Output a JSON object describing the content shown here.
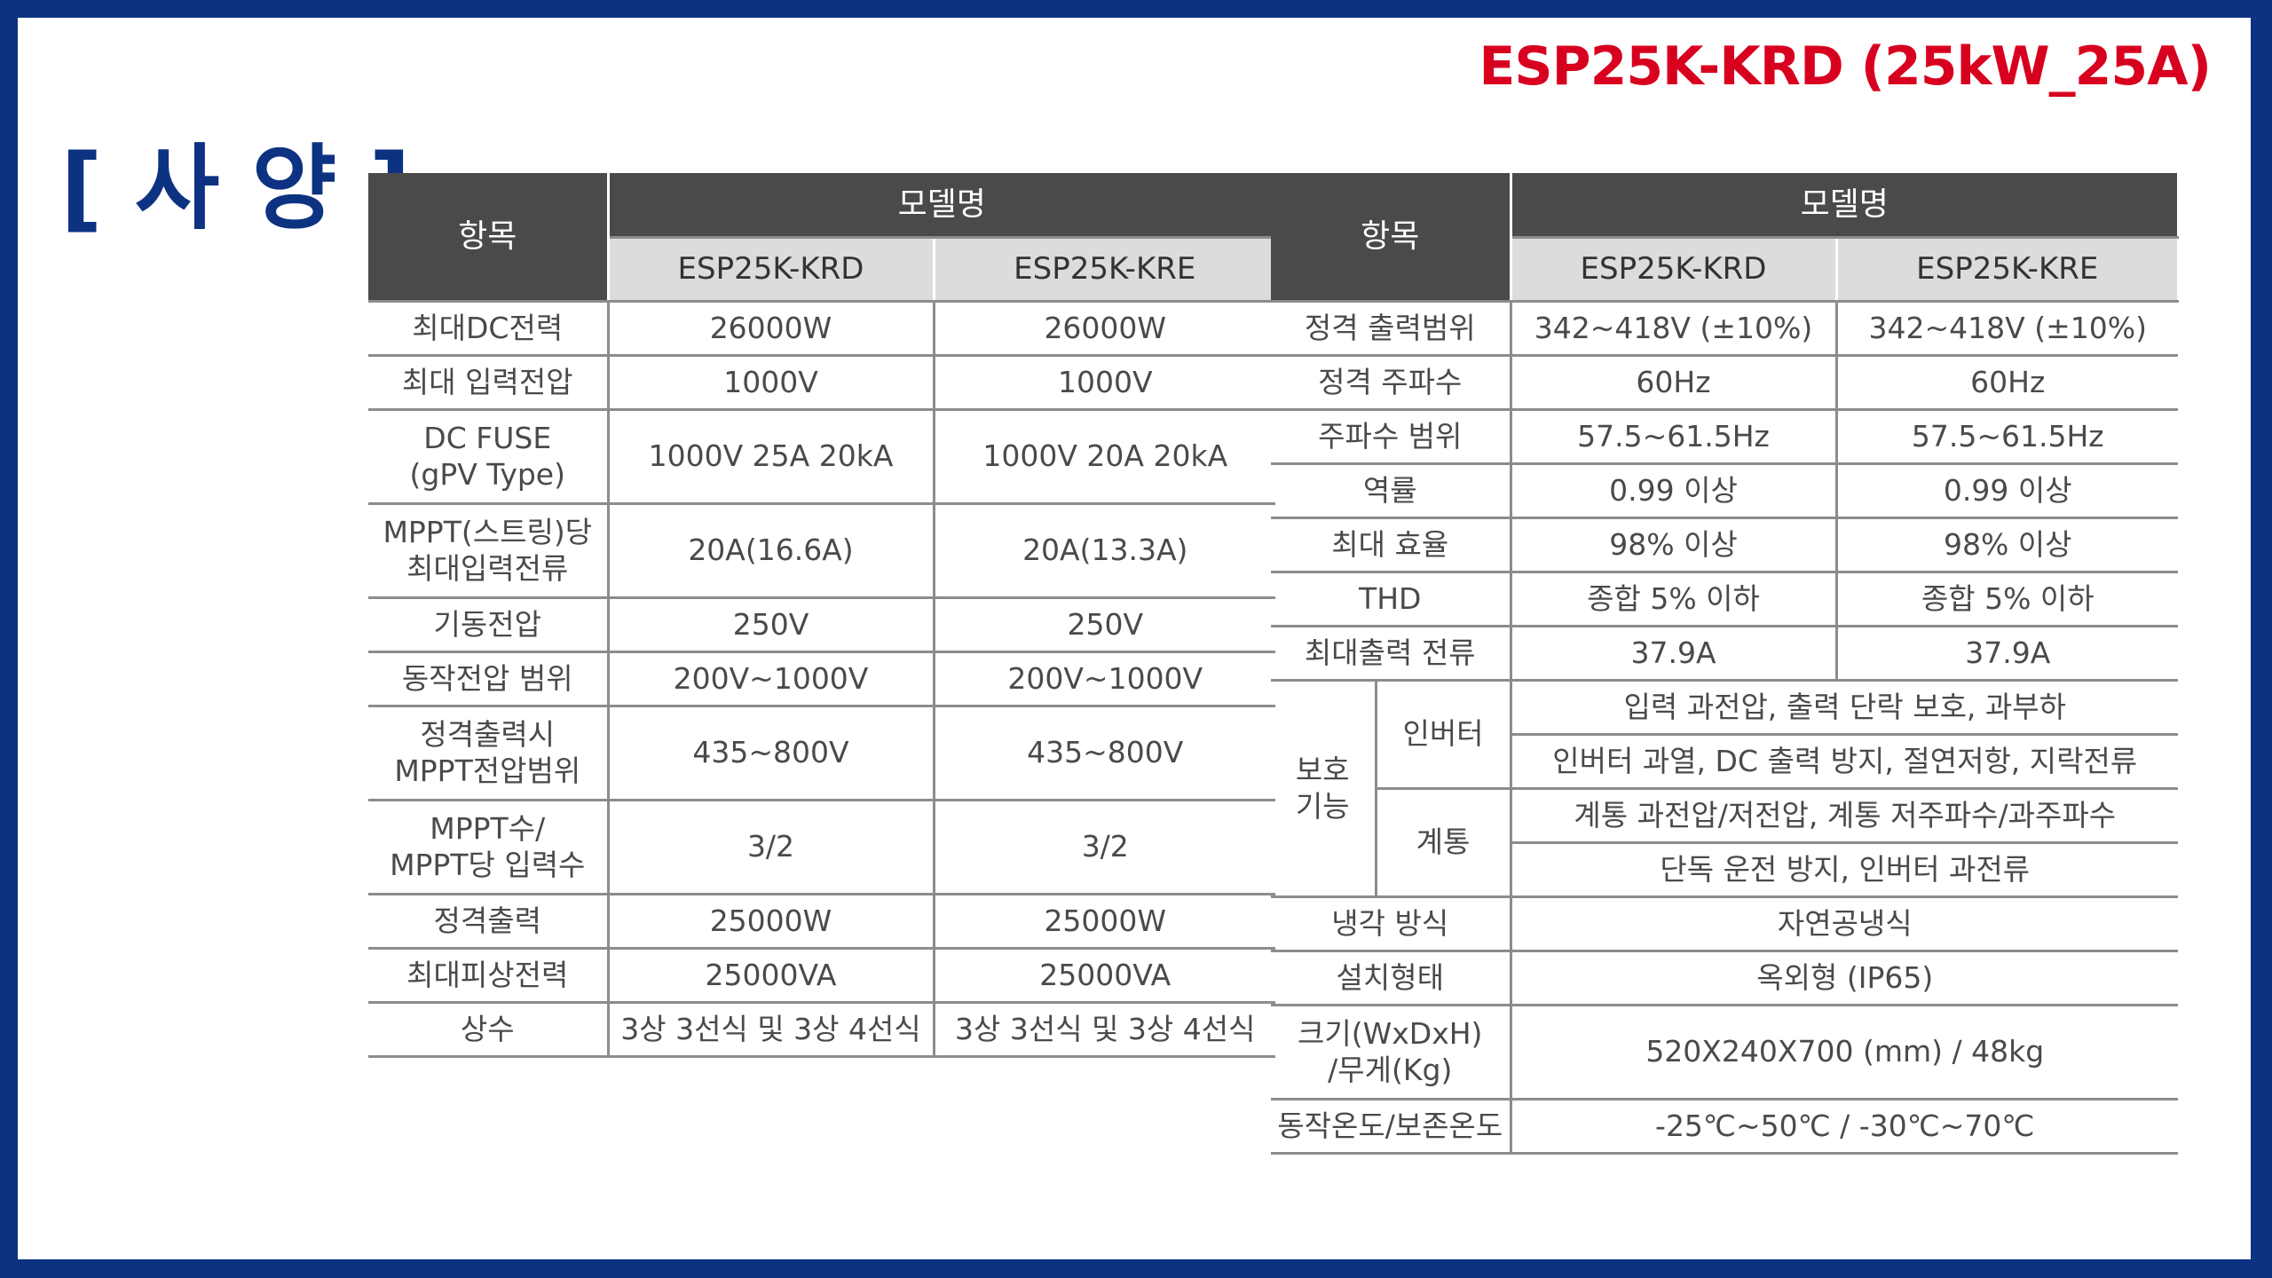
{
  "header": {
    "model_title": "ESP25K-KRD (25kW_25A)",
    "section_title": "[ 사 양 ]"
  },
  "left_table": {
    "col_item": "항목",
    "col_model": "모델명",
    "models": [
      "ESP25K-KRD",
      "ESP25K-KRE"
    ],
    "rows": [
      {
        "label": [
          "최대DC전력"
        ],
        "krd": "26000W",
        "kre": "26000W"
      },
      {
        "label": [
          "최대 입력전압"
        ],
        "krd": "1000V",
        "kre": "1000V"
      },
      {
        "label": [
          "DC FUSE",
          "(gPV Type)"
        ],
        "krd": "1000V 25A 20kA",
        "kre": "1000V 20A 20kA"
      },
      {
        "label": [
          "MPPT(스트링)당",
          "최대입력전류"
        ],
        "krd": "20A(16.6A)",
        "kre": "20A(13.3A)"
      },
      {
        "label": [
          "기동전압"
        ],
        "krd": "250V",
        "kre": "250V"
      },
      {
        "label": [
          "동작전압 범위"
        ],
        "krd": "200V~1000V",
        "kre": "200V~1000V"
      },
      {
        "label": [
          "정격출력시",
          "MPPT전압범위"
        ],
        "krd": "435~800V",
        "kre": "435~800V"
      },
      {
        "label": [
          "MPPT수/",
          "MPPT당 입력수"
        ],
        "krd": "3/2",
        "kre": "3/2"
      },
      {
        "label": [
          "정격출력"
        ],
        "krd": "25000W",
        "kre": "25000W"
      },
      {
        "label": [
          "최대피상전력"
        ],
        "krd": "25000VA",
        "kre": "25000VA"
      },
      {
        "label": [
          "상수"
        ],
        "krd": "3상 3선식 및 3상 4선식",
        "kre": "3상 3선식 및 3상 4선식"
      }
    ]
  },
  "right_table": {
    "col_item": "항목",
    "col_model": "모델명",
    "models": [
      "ESP25K-KRD",
      "ESP25K-KRE"
    ],
    "rows": [
      {
        "label": "정격 출력범위",
        "krd": "342~418V (±10%)",
        "kre": "342~418V (±10%)"
      },
      {
        "label": "정격 주파수",
        "krd": "60Hz",
        "kre": "60Hz"
      },
      {
        "label": "주파수 범위",
        "krd": "57.5~61.5Hz",
        "kre": "57.5~61.5Hz"
      },
      {
        "label": "역률",
        "krd": "0.99 이상",
        "kre": "0.99 이상"
      },
      {
        "label": "최대 효율",
        "krd": "98% 이상",
        "kre": "98% 이상"
      },
      {
        "label": "THD",
        "krd": "종합 5% 이하",
        "kre": "종합 5% 이하"
      },
      {
        "label": "최대출력 전류",
        "krd": "37.9A",
        "kre": "37.9A"
      }
    ],
    "protection": {
      "label": [
        "보호",
        "기능"
      ],
      "inverter_label": "인버터",
      "inverter_lines": [
        "입력 과전압, 출력 단락 보호, 과부하",
        "인버터 과열, DC 출력 방지, 절연저항, 지락전류"
      ],
      "grid_label": "계통",
      "grid_lines": [
        "계통 과전압/저전압, 계통 저주파수/과주파수",
        "단독 운전 방지, 인버터 과전류"
      ]
    },
    "merged_rows": [
      {
        "label": [
          "냉각 방식"
        ],
        "value": "자연공냉식"
      },
      {
        "label": [
          "설치형태"
        ],
        "value": "옥외형 (IP65)"
      },
      {
        "label": [
          "크기(WxDxH)",
          "/무게(Kg)"
        ],
        "value": "520X240X700 (mm) / 48kg"
      },
      {
        "label": [
          "동작온도/보존온도"
        ],
        "value": "-25℃~50℃ / -30℃~70℃"
      }
    ]
  }
}
